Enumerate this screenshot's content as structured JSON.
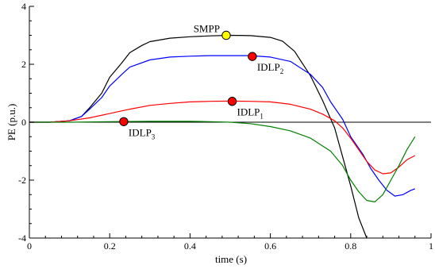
{
  "chart_data": {
    "type": "line",
    "xlabel": "time (s)",
    "ylabel": "PE (p.u.)",
    "xlim": [
      0,
      1
    ],
    "ylim": [
      -4,
      4
    ],
    "xticks": [
      0,
      0.2,
      0.4,
      0.6,
      0.8,
      1
    ],
    "xtick_labels": [
      "0",
      "0.2",
      "0.4",
      "0.6",
      "0.8",
      "1"
    ],
    "yticks": [
      -4,
      -2,
      0,
      2,
      4
    ],
    "ytick_labels": [
      "-4",
      "-2",
      "0",
      "2",
      "4"
    ],
    "grid": false,
    "reference_line": {
      "y": 0,
      "color": "#000000"
    },
    "series": [
      {
        "color": "#000000",
        "x": [
          0,
          0.05,
          0.1,
          0.13,
          0.15,
          0.18,
          0.2,
          0.23,
          0.25,
          0.28,
          0.3,
          0.35,
          0.4,
          0.45,
          0.5,
          0.55,
          0.6,
          0.63,
          0.66,
          0.7,
          0.73,
          0.76,
          0.78,
          0.8,
          0.82,
          0.84
        ],
        "y": [
          0,
          0,
          0.05,
          0.2,
          0.5,
          1.0,
          1.55,
          2.05,
          2.4,
          2.65,
          2.78,
          2.9,
          2.95,
          2.98,
          3.0,
          2.99,
          2.93,
          2.8,
          2.45,
          1.6,
          0.75,
          -0.2,
          -1.2,
          -2.2,
          -3.3,
          -4.0
        ]
      },
      {
        "color": "#0000ff",
        "x": [
          0,
          0.05,
          0.1,
          0.13,
          0.15,
          0.18,
          0.2,
          0.23,
          0.25,
          0.3,
          0.35,
          0.4,
          0.45,
          0.5,
          0.55,
          0.6,
          0.65,
          0.7,
          0.73,
          0.75,
          0.78,
          0.8,
          0.83,
          0.85,
          0.87,
          0.89,
          0.91,
          0.93,
          0.95,
          0.96
        ],
        "y": [
          0,
          0,
          0.05,
          0.2,
          0.45,
          0.85,
          1.25,
          1.65,
          1.9,
          2.15,
          2.25,
          2.28,
          2.3,
          2.3,
          2.3,
          2.25,
          2.1,
          1.65,
          1.2,
          0.7,
          0.1,
          -0.5,
          -1.1,
          -1.6,
          -2.0,
          -2.35,
          -2.55,
          -2.5,
          -2.35,
          -2.3
        ]
      },
      {
        "color": "#ff0000",
        "x": [
          0,
          0.05,
          0.1,
          0.15,
          0.2,
          0.25,
          0.3,
          0.35,
          0.4,
          0.45,
          0.5,
          0.55,
          0.6,
          0.65,
          0.7,
          0.73,
          0.76,
          0.78,
          0.8,
          0.82,
          0.84,
          0.86,
          0.88,
          0.9,
          0.92,
          0.94,
          0.96
        ],
        "y": [
          0,
          0,
          0.05,
          0.15,
          0.3,
          0.45,
          0.58,
          0.65,
          0.7,
          0.72,
          0.73,
          0.72,
          0.7,
          0.62,
          0.45,
          0.28,
          0.05,
          -0.2,
          -0.55,
          -0.95,
          -1.35,
          -1.65,
          -1.78,
          -1.75,
          -1.55,
          -1.3,
          -1.15
        ]
      },
      {
        "color": "#008000",
        "x": [
          0,
          0.1,
          0.2,
          0.3,
          0.4,
          0.45,
          0.5,
          0.55,
          0.6,
          0.65,
          0.7,
          0.75,
          0.78,
          0.8,
          0.82,
          0.84,
          0.86,
          0.88,
          0.9,
          0.92,
          0.94,
          0.96
        ],
        "y": [
          0,
          0,
          0.02,
          0.03,
          0.03,
          0.02,
          0,
          -0.05,
          -0.15,
          -0.3,
          -0.55,
          -1.0,
          -1.5,
          -2.0,
          -2.4,
          -2.7,
          -2.75,
          -2.5,
          -2.0,
          -1.5,
          -0.95,
          -0.5
        ]
      }
    ],
    "annotations": [
      {
        "text": "SMPP",
        "sub": "",
        "x": 0.49,
        "y": 3.0,
        "marker": "#ffff00",
        "label_pos": "left"
      },
      {
        "text": "IDLP",
        "sub": "2",
        "x": 0.555,
        "y": 2.27,
        "marker": "#ff0000",
        "label_pos": "below-right"
      },
      {
        "text": "IDLP",
        "sub": "1",
        "x": 0.505,
        "y": 0.72,
        "marker": "#ff0000",
        "label_pos": "below-right"
      },
      {
        "text": "IDLP",
        "sub": "3",
        "x": 0.235,
        "y": 0.02,
        "marker": "#ff0000",
        "label_pos": "below-right"
      }
    ]
  }
}
